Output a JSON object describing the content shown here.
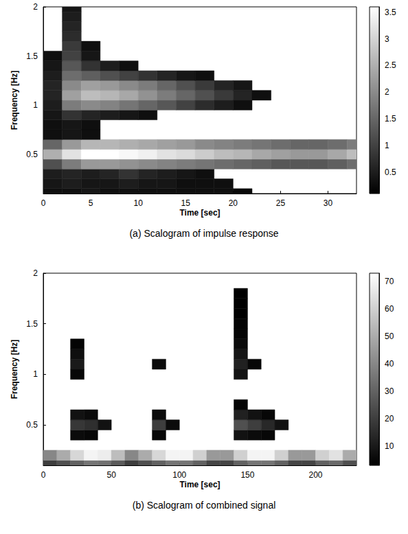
{
  "chart_data": [
    {
      "type": "heatmap",
      "title": "(a) Scalogram of impulse response",
      "x_label": "Time [sec]",
      "y_label": "Frequency [Hz]",
      "xlim": [
        0,
        33
      ],
      "xticks": [
        0,
        5,
        10,
        15,
        20,
        25,
        30
      ],
      "ylim": [
        0.1,
        2
      ],
      "yticks": [
        0.5,
        1,
        1.5,
        2
      ],
      "cells": {
        "x": [
          1,
          3,
          5,
          7,
          9,
          11,
          13,
          15,
          17,
          19,
          21,
          23,
          25,
          27,
          29,
          31,
          33
        ],
        "y": [
          0.1,
          0.2,
          0.3,
          0.4,
          0.5,
          0.6,
          0.7,
          0.8,
          0.9,
          1.0,
          1.1,
          1.2,
          1.3,
          1.4,
          1.5,
          1.6,
          1.7,
          1.8,
          1.9,
          2.0
        ],
        "z": [
          [
            0.3,
            0.3,
            0.4,
            0.3,
            0.3,
            0.3,
            0.3,
            0.3,
            0.3,
            0.3,
            0.2,
            null,
            null,
            null,
            null,
            null,
            null
          ],
          [
            0.4,
            0.5,
            0.4,
            0.4,
            0.5,
            0.4,
            0.4,
            0.3,
            0.3,
            0.3,
            null,
            null,
            null,
            null,
            null,
            null,
            null
          ],
          [
            0.5,
            0.6,
            0.5,
            0.6,
            0.8,
            0.6,
            0.5,
            0.4,
            0.3,
            null,
            null,
            null,
            null,
            null,
            null,
            null,
            null
          ],
          [
            1.2,
            1.8,
            2.2,
            2.2,
            2.1,
            2.0,
            1.9,
            1.8,
            1.7,
            1.6,
            1.5,
            1.4,
            1.3,
            1.3,
            1.3,
            1.4,
            1.6
          ],
          [
            2.5,
            3.2,
            3.6,
            3.6,
            3.5,
            3.4,
            3.2,
            3.1,
            2.9,
            2.7,
            2.6,
            2.4,
            2.3,
            2.2,
            2.2,
            2.4,
            2.7
          ],
          [
            1.5,
            2.2,
            2.6,
            2.6,
            2.5,
            2.4,
            2.3,
            2.2,
            2.0,
            1.9,
            1.8,
            1.7,
            1.6,
            1.5,
            1.5,
            1.6,
            1.8
          ],
          [
            0.3,
            0.4,
            0.3,
            null,
            null,
            null,
            null,
            null,
            null,
            null,
            null,
            null,
            null,
            null,
            null,
            null,
            null
          ],
          [
            0.3,
            0.4,
            0.3,
            null,
            null,
            null,
            null,
            null,
            null,
            null,
            null,
            null,
            null,
            null,
            null,
            null,
            null
          ],
          [
            0.4,
            0.8,
            0.6,
            0.5,
            0.4,
            0.3,
            null,
            null,
            null,
            null,
            null,
            null,
            null,
            null,
            null,
            null,
            null
          ],
          [
            0.5,
            1.8,
            2.0,
            1.9,
            1.7,
            1.5,
            1.3,
            1.0,
            0.7,
            0.5,
            0.3,
            null,
            null,
            null,
            null,
            null,
            null
          ],
          [
            0.6,
            2.3,
            2.7,
            2.6,
            2.4,
            2.1,
            1.8,
            1.5,
            1.2,
            0.9,
            0.6,
            0.3,
            null,
            null,
            null,
            null,
            null
          ],
          [
            0.6,
            2.0,
            2.3,
            2.2,
            2.0,
            1.8,
            1.5,
            1.2,
            0.9,
            0.6,
            0.4,
            null,
            null,
            null,
            null,
            null,
            null
          ],
          [
            0.5,
            1.6,
            1.4,
            1.2,
            1.0,
            0.8,
            0.6,
            0.4,
            0.3,
            null,
            null,
            null,
            null,
            null,
            null,
            null,
            null
          ],
          [
            0.4,
            1.3,
            0.8,
            0.5,
            0.3,
            null,
            null,
            null,
            null,
            null,
            null,
            null,
            null,
            null,
            null,
            null,
            null
          ],
          [
            0.3,
            1.0,
            0.4,
            null,
            null,
            null,
            null,
            null,
            null,
            null,
            null,
            null,
            null,
            null,
            null,
            null,
            null
          ],
          [
            null,
            0.9,
            0.3,
            null,
            null,
            null,
            null,
            null,
            null,
            null,
            null,
            null,
            null,
            null,
            null,
            null,
            null
          ],
          [
            null,
            0.7,
            null,
            null,
            null,
            null,
            null,
            null,
            null,
            null,
            null,
            null,
            null,
            null,
            null,
            null,
            null
          ],
          [
            null,
            0.6,
            null,
            null,
            null,
            null,
            null,
            null,
            null,
            null,
            null,
            null,
            null,
            null,
            null,
            null,
            null
          ],
          [
            null,
            0.5,
            null,
            null,
            null,
            null,
            null,
            null,
            null,
            null,
            null,
            null,
            null,
            null,
            null,
            null,
            null
          ],
          [
            null,
            0.4,
            null,
            null,
            null,
            null,
            null,
            null,
            null,
            null,
            null,
            null,
            null,
            null,
            null,
            null,
            null
          ]
        ]
      },
      "colorbar": {
        "range": [
          0.1,
          3.6
        ],
        "ticks": [
          0.5,
          1,
          1.5,
          2,
          2.5,
          3,
          3.5
        ]
      }
    },
    {
      "type": "heatmap",
      "title": "(b) Scalogram of combined signal",
      "x_label": "Time [sec]",
      "y_label": "Frequency [Hz]",
      "xlim": [
        0,
        230
      ],
      "xticks": [
        0,
        50,
        100,
        150,
        200
      ],
      "ylim": [
        0.1,
        2
      ],
      "yticks": [
        0.5,
        1,
        1.5,
        2
      ],
      "cells": {
        "x": [
          5,
          15,
          25,
          35,
          45,
          55,
          65,
          75,
          85,
          95,
          105,
          115,
          125,
          135,
          145,
          155,
          165,
          175,
          185,
          195,
          205,
          215,
          225
        ],
        "y": [
          0.1,
          0.2,
          0.3,
          0.4,
          0.5,
          0.6,
          0.7,
          0.8,
          0.9,
          1.0,
          1.1,
          1.2,
          1.3,
          1.4,
          1.5,
          1.6,
          1.7,
          1.8
        ],
        "z": [
          [
            20,
            25,
            30,
            35,
            34,
            28,
            20,
            25,
            30,
            35,
            35,
            30,
            22,
            22,
            30,
            35,
            35,
            30,
            22,
            22,
            30,
            32,
            25
          ],
          [
            40,
            50,
            62,
            70,
            68,
            55,
            40,
            50,
            62,
            70,
            70,
            60,
            45,
            45,
            60,
            70,
            70,
            60,
            45,
            45,
            60,
            65,
            50
          ],
          [
            null,
            null,
            null,
            null,
            null,
            null,
            null,
            null,
            null,
            null,
            null,
            null,
            null,
            null,
            null,
            null,
            null,
            null,
            null,
            null,
            null,
            null,
            null
          ],
          [
            null,
            null,
            6,
            5,
            null,
            null,
            null,
            null,
            5,
            null,
            null,
            null,
            null,
            null,
            8,
            6,
            5,
            null,
            null,
            null,
            null,
            null,
            null
          ],
          [
            null,
            null,
            18,
            16,
            8,
            null,
            null,
            null,
            20,
            6,
            null,
            null,
            null,
            null,
            25,
            20,
            14,
            8,
            null,
            null,
            null,
            null,
            null
          ],
          [
            null,
            null,
            8,
            6,
            null,
            null,
            null,
            null,
            6,
            null,
            null,
            null,
            null,
            null,
            12,
            8,
            5,
            null,
            null,
            null,
            null,
            null,
            null
          ],
          [
            null,
            null,
            null,
            null,
            null,
            null,
            null,
            null,
            null,
            null,
            null,
            null,
            null,
            null,
            4,
            null,
            null,
            null,
            null,
            null,
            null,
            null,
            null
          ],
          [
            null,
            null,
            null,
            null,
            null,
            null,
            null,
            null,
            null,
            null,
            null,
            null,
            null,
            null,
            null,
            null,
            null,
            null,
            null,
            null,
            null,
            null,
            null
          ],
          [
            null,
            null,
            null,
            null,
            null,
            null,
            null,
            null,
            null,
            null,
            null,
            null,
            null,
            null,
            null,
            null,
            null,
            null,
            null,
            null,
            null,
            null,
            null
          ],
          [
            null,
            null,
            5,
            null,
            null,
            null,
            null,
            null,
            null,
            null,
            null,
            null,
            null,
            null,
            8,
            null,
            null,
            null,
            null,
            null,
            null,
            null,
            null
          ],
          [
            null,
            null,
            10,
            null,
            null,
            null,
            null,
            null,
            6,
            null,
            null,
            null,
            null,
            null,
            12,
            5,
            null,
            null,
            null,
            null,
            null,
            null,
            null
          ],
          [
            null,
            null,
            7,
            null,
            null,
            null,
            null,
            null,
            null,
            null,
            null,
            null,
            null,
            null,
            9,
            null,
            null,
            null,
            null,
            null,
            null,
            null,
            null
          ],
          [
            null,
            null,
            4,
            null,
            null,
            null,
            null,
            null,
            null,
            null,
            null,
            null,
            null,
            null,
            6,
            null,
            null,
            null,
            null,
            null,
            null,
            null,
            null
          ],
          [
            null,
            null,
            null,
            null,
            null,
            null,
            null,
            null,
            null,
            null,
            null,
            null,
            null,
            null,
            4,
            null,
            null,
            null,
            null,
            null,
            null,
            null,
            null
          ],
          [
            null,
            null,
            null,
            null,
            null,
            null,
            null,
            null,
            null,
            null,
            null,
            null,
            null,
            null,
            4,
            null,
            null,
            null,
            null,
            null,
            null,
            null,
            null
          ],
          [
            null,
            null,
            null,
            null,
            null,
            null,
            null,
            null,
            null,
            null,
            null,
            null,
            null,
            null,
            3,
            null,
            null,
            null,
            null,
            null,
            null,
            null,
            null
          ],
          [
            null,
            null,
            null,
            null,
            null,
            null,
            null,
            null,
            null,
            null,
            null,
            null,
            null,
            null,
            3,
            null,
            null,
            null,
            null,
            null,
            null,
            null,
            null
          ],
          [
            null,
            null,
            null,
            null,
            null,
            null,
            null,
            null,
            null,
            null,
            null,
            null,
            null,
            null,
            3,
            null,
            null,
            null,
            null,
            null,
            null,
            null,
            null
          ]
        ]
      },
      "colorbar": {
        "range": [
          3,
          73
        ],
        "ticks": [
          10,
          20,
          30,
          40,
          50,
          60,
          70
        ]
      }
    }
  ]
}
